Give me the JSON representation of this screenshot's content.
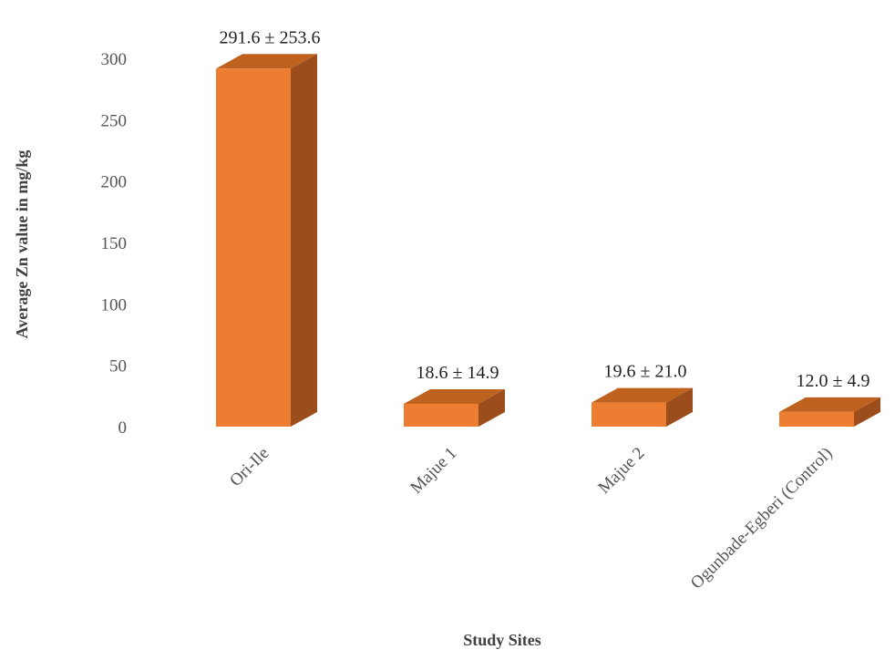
{
  "chart_data": {
    "type": "bar",
    "style": "3d-column",
    "categories": [
      "Ori-Ile",
      "Majue 1",
      "Majue 2",
      "Ogunbade-Egberi (Control)"
    ],
    "values": [
      291.6,
      18.6,
      19.6,
      12.0
    ],
    "data_labels": [
      "291.6 ± 253.6",
      "18.6 ± 14.9",
      "19.6 ± 21.0",
      "12.0 ± 4.9"
    ],
    "xlabel": "Study Sites",
    "ylabel": "Average Zn value in mg/kg",
    "ylim": [
      0,
      300
    ],
    "yticks": [
      "0",
      "50",
      "100",
      "150",
      "200",
      "250",
      "300"
    ],
    "grid": false,
    "legend": "none",
    "colors": {
      "front": "#ed7d31",
      "side": "#9b4e1c",
      "top": "#c0621f"
    }
  }
}
